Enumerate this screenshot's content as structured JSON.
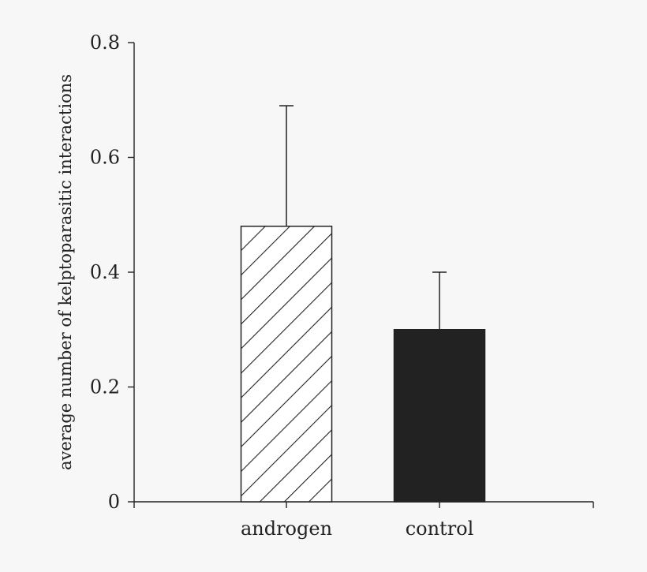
{
  "chart_data": {
    "type": "bar",
    "title": "",
    "xlabel": "",
    "ylabel": "average number of kelptoparasitic interactions",
    "ylim": [
      0,
      0.8
    ],
    "yticks": [
      0,
      0.2,
      0.4,
      0.6,
      0.8
    ],
    "ytick_labels": [
      "0",
      "0.2",
      "0.4",
      "0.6",
      "0.8"
    ],
    "categories": [
      "androgen",
      "control"
    ],
    "values": [
      0.48,
      0.3
    ],
    "error_upper": [
      0.69,
      0.4
    ],
    "bar_styles": [
      "hatched",
      "solid"
    ],
    "colors": {
      "axis": "#222222",
      "solid_bar": "#222222",
      "hatched_bar_fill": "#ffffff",
      "background": "#f7f7f7"
    },
    "grid": false,
    "legend": "none"
  }
}
